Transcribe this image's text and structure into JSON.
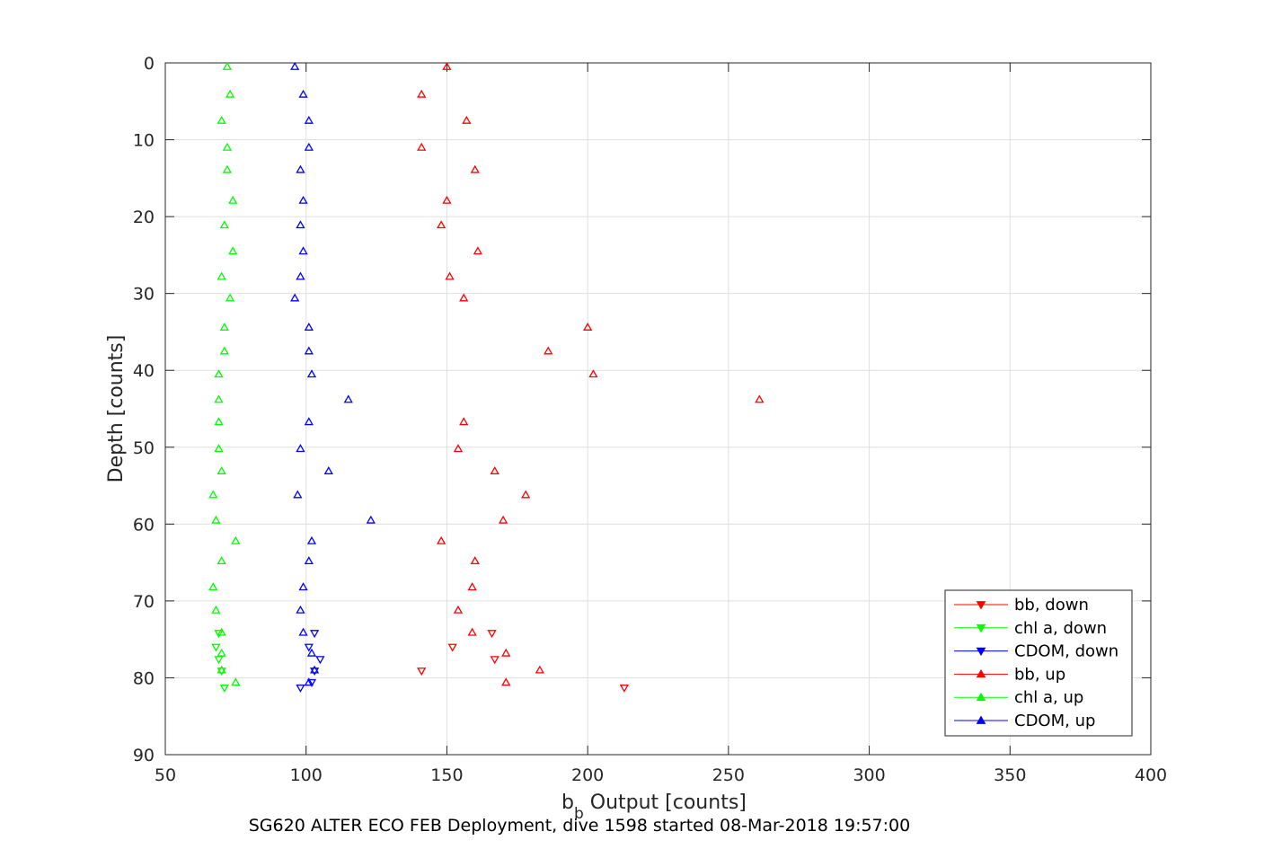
{
  "chart_data": {
    "type": "scatter",
    "xlabel": "b",
    "xlabel_subscript": "b",
    "xlabel_rest": " Output [counts]",
    "ylabel": "Depth [counts]",
    "caption": "SG620 ALTER ECO FEB Deployment, dive 1598 started 08-Mar-2018 19:57:00",
    "xlim": [
      50,
      400
    ],
    "ylim": [
      0,
      90
    ],
    "y_reversed": true,
    "xticks": [
      50,
      100,
      150,
      200,
      250,
      300,
      350,
      400
    ],
    "yticks": [
      0,
      10,
      20,
      30,
      40,
      50,
      60,
      70,
      80,
      90
    ],
    "grid": true,
    "legend_position": "bottom-right",
    "series": [
      {
        "name": "bb, down",
        "color": "#ff0000",
        "marker": "triangle-down",
        "points": [
          [
            166,
            74.2
          ],
          [
            152,
            76.0
          ],
          [
            167,
            77.6
          ],
          [
            141,
            79.1
          ],
          [
            213,
            81.3
          ]
        ]
      },
      {
        "name": "chl a, down",
        "color": "#00ff00",
        "marker": "triangle-down",
        "points": [
          [
            69,
            74.2
          ],
          [
            68,
            76.0
          ],
          [
            69,
            77.6
          ],
          [
            70,
            79.1
          ],
          [
            71,
            81.3
          ]
        ]
      },
      {
        "name": "CDOM, down",
        "color": "#0000ff",
        "marker": "triangle-down",
        "points": [
          [
            103,
            74.2
          ],
          [
            101,
            76.0
          ],
          [
            105,
            77.6
          ],
          [
            103,
            79.1
          ],
          [
            98,
            81.3
          ],
          [
            102,
            80.6
          ]
        ]
      },
      {
        "name": "bb, up",
        "color": "#ff0000",
        "marker": "triangle-up",
        "points": [
          [
            150,
            0.5
          ],
          [
            141,
            4.1
          ],
          [
            157,
            7.5
          ],
          [
            141,
            11.0
          ],
          [
            160,
            13.9
          ],
          [
            150,
            17.9
          ],
          [
            148,
            21.1
          ],
          [
            161,
            24.5
          ],
          [
            151,
            27.8
          ],
          [
            156,
            30.6
          ],
          [
            200,
            34.4
          ],
          [
            186,
            37.5
          ],
          [
            202,
            40.5
          ],
          [
            261,
            43.8
          ],
          [
            156,
            46.7
          ],
          [
            154,
            50.2
          ],
          [
            167,
            53.1
          ],
          [
            178,
            56.2
          ],
          [
            170,
            59.5
          ],
          [
            148,
            62.2
          ],
          [
            160,
            64.8
          ],
          [
            159,
            68.2
          ],
          [
            154,
            71.2
          ],
          [
            159,
            74.1
          ],
          [
            171,
            76.8
          ],
          [
            183,
            79.0
          ],
          [
            171,
            80.6
          ]
        ]
      },
      {
        "name": "chl a, up",
        "color": "#00ff00",
        "marker": "triangle-up",
        "points": [
          [
            72,
            0.5
          ],
          [
            73,
            4.1
          ],
          [
            70,
            7.5
          ],
          [
            72,
            11.0
          ],
          [
            72,
            13.9
          ],
          [
            74,
            17.9
          ],
          [
            71,
            21.1
          ],
          [
            74,
            24.5
          ],
          [
            70,
            27.8
          ],
          [
            73,
            30.6
          ],
          [
            71,
            34.4
          ],
          [
            71,
            37.5
          ],
          [
            69,
            40.5
          ],
          [
            69,
            43.8
          ],
          [
            69,
            46.7
          ],
          [
            69,
            50.2
          ],
          [
            70,
            53.1
          ],
          [
            67,
            56.2
          ],
          [
            68,
            59.5
          ],
          [
            75,
            62.2
          ],
          [
            70,
            64.8
          ],
          [
            67,
            68.2
          ],
          [
            68,
            71.2
          ],
          [
            70,
            74.1
          ],
          [
            70,
            76.8
          ],
          [
            70,
            79.0
          ],
          [
            75,
            80.6
          ]
        ]
      },
      {
        "name": "CDOM, up",
        "color": "#0000ff",
        "marker": "triangle-up",
        "points": [
          [
            96,
            0.5
          ],
          [
            99,
            4.1
          ],
          [
            101,
            7.5
          ],
          [
            101,
            11.0
          ],
          [
            98,
            13.9
          ],
          [
            99,
            17.9
          ],
          [
            98,
            21.1
          ],
          [
            99,
            24.5
          ],
          [
            98,
            27.8
          ],
          [
            96,
            30.6
          ],
          [
            101,
            34.4
          ],
          [
            101,
            37.5
          ],
          [
            102,
            40.5
          ],
          [
            115,
            43.8
          ],
          [
            101,
            46.7
          ],
          [
            98,
            50.2
          ],
          [
            108,
            53.1
          ],
          [
            97,
            56.2
          ],
          [
            123,
            59.5
          ],
          [
            102,
            62.2
          ],
          [
            101,
            64.8
          ],
          [
            99,
            68.2
          ],
          [
            98,
            71.2
          ],
          [
            99,
            74.1
          ],
          [
            102,
            76.8
          ],
          [
            103,
            79.0
          ],
          [
            101,
            80.6
          ]
        ]
      }
    ]
  }
}
